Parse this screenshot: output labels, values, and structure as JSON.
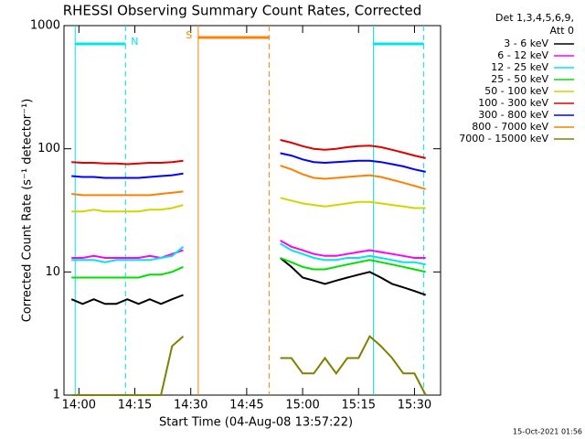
{
  "chart_data": {
    "type": "line",
    "title": "RHESSI Observing Summary Count Rates, Corrected",
    "x_label": "Start Time (04-Aug-08 13:57:22)",
    "y_label": "Corrected Count Rate (s⁻¹ detector⁻¹)",
    "legend_header": [
      "Det 1,3,4,5,6,9,",
      "Att 0"
    ],
    "footer": "15-Oct-2021 01:56",
    "log_y": true,
    "legend": "right",
    "xlim": [
      "13:56",
      "15:37"
    ],
    "xticks": [
      "14:00",
      "14:15",
      "14:30",
      "14:45",
      "15:00",
      "15:15",
      "15:30"
    ],
    "ylim": [
      1,
      1000
    ],
    "yticks": [
      1,
      10,
      100,
      1000
    ],
    "x": [
      "13:58",
      "14:01",
      "14:04",
      "14:07",
      "14:10",
      "14:13",
      "14:16",
      "14:19",
      "14:22",
      "14:25",
      "14:28",
      "14:40",
      "14:54",
      "14:57",
      "15:00",
      "15:03",
      "15:06",
      "15:09",
      "15:12",
      "15:15",
      "15:18",
      "15:21",
      "15:24",
      "15:27",
      "15:30",
      "15:33"
    ],
    "series": [
      {
        "name": "3 - 6 keV",
        "color": "#000000",
        "values": [
          6,
          5.5,
          6,
          5.5,
          5.5,
          6,
          5.5,
          6,
          5.5,
          6,
          6.5,
          null,
          13,
          11,
          9,
          8.5,
          8,
          8.5,
          9,
          9.5,
          10,
          9,
          8,
          7.5,
          7,
          6.5
        ]
      },
      {
        "name": "6 - 12 keV",
        "color": "#ff00ff",
        "values": [
          13,
          13,
          13.5,
          13,
          13,
          13,
          13,
          13.5,
          13,
          14,
          15,
          null,
          18,
          16,
          15,
          14,
          13.5,
          13.5,
          14,
          14.5,
          15,
          14.5,
          14,
          13.5,
          13,
          13
        ]
      },
      {
        "name": "12 - 25 keV",
        "color": "#00e5e5",
        "values": [
          12.5,
          12.5,
          12.5,
          12,
          12.5,
          12.5,
          12.5,
          12.5,
          13,
          13.5,
          16,
          null,
          17,
          15,
          14,
          13,
          12.5,
          12.5,
          13,
          13,
          13.5,
          13,
          12.5,
          12,
          12,
          11.5
        ]
      },
      {
        "name": "25 - 50 keV",
        "color": "#00e000",
        "values": [
          9,
          9,
          9,
          9,
          9,
          9,
          9,
          9.5,
          9.5,
          10,
          11,
          null,
          13,
          12,
          11,
          10.5,
          10.5,
          11,
          11.5,
          12,
          12.5,
          12,
          11.5,
          11,
          10.5,
          10
        ]
      },
      {
        "name": "50 - 100 keV",
        "color": "#d4d400",
        "values": [
          31,
          31,
          32,
          31,
          31,
          31,
          31,
          32,
          32,
          33,
          35,
          null,
          40,
          38,
          36,
          35,
          34,
          35,
          36,
          37,
          37,
          36,
          35,
          34,
          33,
          33
        ]
      },
      {
        "name": "100 - 300 keV",
        "color": "#e00000",
        "values": [
          78,
          77,
          77,
          76,
          76,
          75,
          76,
          77,
          77,
          78,
          80,
          null,
          118,
          112,
          105,
          100,
          98,
          100,
          103,
          105,
          106,
          103,
          98,
          93,
          88,
          84
        ]
      },
      {
        "name": "300 - 800 keV",
        "color": "#0000ff",
        "values": [
          60,
          59,
          59,
          58,
          58,
          58,
          58,
          59,
          60,
          61,
          63,
          null,
          92,
          88,
          82,
          78,
          77,
          78,
          79,
          80,
          80,
          78,
          75,
          72,
          68,
          65
        ]
      },
      {
        "name": "800 - 7000 keV",
        "color": "#ff8000",
        "values": [
          43,
          42,
          42,
          42,
          42,
          42,
          42,
          42,
          43,
          44,
          45,
          null,
          73,
          68,
          62,
          58,
          57,
          58,
          59,
          60,
          61,
          59,
          56,
          53,
          50,
          47
        ]
      },
      {
        "name": "7000 - 15000 keV",
        "color": "#808000",
        "values": [
          1,
          1,
          1,
          1,
          1,
          1,
          1,
          1,
          1,
          2.5,
          3,
          null,
          2,
          2,
          1.5,
          1.5,
          2,
          1.5,
          2,
          2,
          3,
          2.5,
          2,
          1.5,
          1.5,
          1
        ]
      }
    ],
    "intervals": [
      {
        "label": "N",
        "color": "#00e5e5",
        "start": "13:59",
        "end": "14:12:30"
      },
      {
        "label": "S",
        "color": "#ff8000",
        "start": "14:32",
        "end": "14:51"
      },
      {
        "label": null,
        "color": "#00e5e5",
        "start": "15:19",
        "end": "15:32:30"
      }
    ]
  }
}
